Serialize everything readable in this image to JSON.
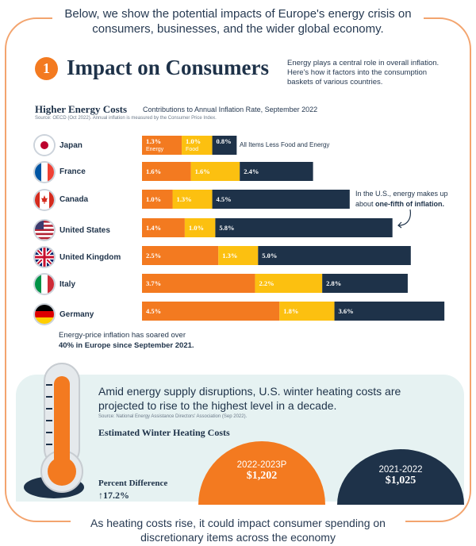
{
  "intro": "Below, we show the potential impacts of Europe's energy crisis on consumers, businesses, and the wider global economy.",
  "section": {
    "number": "1",
    "title": "Impact on Consumers",
    "description": "Energy plays a central role in overall inflation. Here's how it factors into the consumption baskets of various countries."
  },
  "colors": {
    "energy": "#f37a20",
    "food": "#fcc010",
    "other": "#1e3249",
    "accent": "#f37a20"
  },
  "chart_data": [
    {
      "type": "bar",
      "stacked": true,
      "orientation": "horizontal",
      "title": "Higher Energy Costs",
      "subtitle": "Contributions to Annual Inflation Rate, September 2022",
      "source": "Source: OECD (Oct 2022). Annual inflation is measured by the Consumer Price Index.",
      "categories": [
        "Japan",
        "France",
        "Canada",
        "United States",
        "United Kingdom",
        "Italy",
        "Germany"
      ],
      "series": [
        {
          "name": "Energy",
          "values": [
            1.3,
            1.6,
            1.0,
            1.4,
            2.5,
            3.7,
            4.5
          ],
          "labels": [
            "1.3%",
            "1.6%",
            "1.0%",
            "1.4%",
            "2.5%",
            "3.7%",
            "4.5%"
          ]
        },
        {
          "name": "Food",
          "values": [
            1.0,
            1.6,
            1.3,
            1.0,
            1.3,
            2.2,
            1.8
          ],
          "labels": [
            "1.0%",
            "1.6%",
            "1.3%",
            "1.0%",
            "1.3%",
            "2.2%",
            "1.8%"
          ]
        },
        {
          "name": "All Items Less Food and Energy",
          "values": [
            0.8,
            2.4,
            4.5,
            5.8,
            5.0,
            2.8,
            3.6
          ],
          "labels": [
            "0.8%",
            "2.4%",
            "4.5%",
            "5.8%",
            "5.0%",
            "2.8%",
            "3.6%"
          ]
        }
      ],
      "annotations": {
        "us_note_prefix": "In the U.S., energy makes up about ",
        "us_note_bold": "one-fifth of inflation.",
        "europe_note_line1": "Energy-price inflation has soared over",
        "europe_note_line2": "40% in Europe since September 2021."
      }
    },
    {
      "type": "bar",
      "title": "Estimated Winter Heating Costs",
      "categories": [
        "2022-2023P",
        "2021-2022"
      ],
      "values": [
        1202,
        1025
      ],
      "value_labels": [
        "$1,202",
        "$1,025"
      ],
      "percent_difference_label": "Percent Difference",
      "percent_difference": "17.2%"
    }
  ],
  "heating": {
    "headline": "Amid energy supply disruptions, U.S. winter heating costs are projected to rise to the highest level in a decade.",
    "source": "Source: National Energy Assistance Directors' Association (Sep 2022)."
  },
  "icons": [
    "flag-japan-icon",
    "flag-france-icon",
    "flag-canada-icon",
    "flag-usa-icon",
    "flag-uk-icon",
    "flag-italy-icon",
    "flag-germany-icon",
    "thermometer-icon",
    "up-arrow-icon"
  ],
  "outro": "As heating costs rise, it could impact consumer spending on discretionary items across the economy"
}
